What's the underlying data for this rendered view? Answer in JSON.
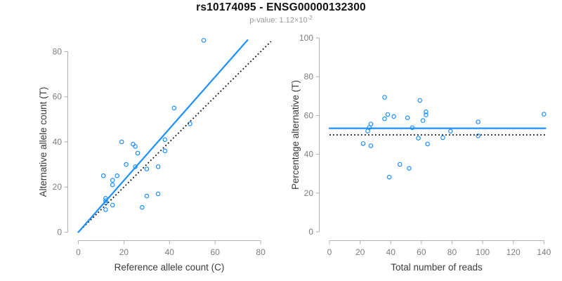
{
  "header": {
    "title": "rs10174095 - ENSG00000132300",
    "subtitle_prefix": "p-value: 1.12×10",
    "subtitle_exponent": "-2"
  },
  "colors": {
    "point_blue": "#1e90ff",
    "line_blue": "#1e90ff",
    "dotted_black": "#111111",
    "axis_gray": "#b0b0b0",
    "tick_label_gray": "#7d7d7d",
    "axis_title_gray": "#3b3b3b",
    "title_black": "#111111",
    "subtitle_gray": "#9b9b9b"
  },
  "chart_data": {
    "title": "rs10174095 - ENSG00000132300",
    "subtitle": "p-value: 1.12×10^-2",
    "panels": [
      {
        "name": "allele-counts-panel",
        "type": "scatter",
        "xlabel": "Reference allele count (C)",
        "ylabel": "Alternative allele count (T)",
        "xlim": [
          0,
          80
        ],
        "ylim": [
          0,
          80
        ],
        "xticks": [
          0,
          20,
          40,
          60,
          80
        ],
        "yticks": [
          0,
          20,
          40,
          60,
          80
        ],
        "grid": false,
        "legend": "none",
        "points": [
          [
            11,
            25
          ],
          [
            19,
            40
          ],
          [
            15,
            23
          ],
          [
            17,
            25
          ],
          [
            15,
            21
          ],
          [
            24,
            39
          ],
          [
            25,
            38
          ],
          [
            21,
            30
          ],
          [
            26,
            35
          ],
          [
            42,
            55
          ],
          [
            55,
            85
          ],
          [
            12,
            15
          ],
          [
            25,
            29
          ],
          [
            12,
            14
          ],
          [
            12,
            13
          ],
          [
            38,
            41
          ],
          [
            30,
            28
          ],
          [
            38,
            36
          ],
          [
            49,
            48
          ],
          [
            12,
            10
          ],
          [
            15,
            12
          ],
          [
            35,
            29
          ],
          [
            30,
            16
          ],
          [
            35,
            17
          ],
          [
            28,
            11
          ]
        ],
        "lines": [
          {
            "name": "identity-line",
            "style": "dotted",
            "from": [
              1,
              1
            ],
            "to": [
              84.5,
              84.5
            ]
          },
          {
            "name": "fitted-line",
            "style": "solid",
            "from": [
              0,
              0
            ],
            "to": [
              74.2,
              85.1
            ]
          }
        ]
      },
      {
        "name": "percentage-panel",
        "type": "scatter",
        "xlabel": "Total number of reads",
        "ylabel": "Percentage alternative (T)",
        "xlim": [
          0,
          140
        ],
        "ylim": [
          0,
          100
        ],
        "xticks": [
          0,
          20,
          40,
          60,
          80,
          100,
          120,
          140
        ],
        "yticks": [
          0,
          20,
          40,
          60,
          80,
          100
        ],
        "grid": false,
        "legend": "none",
        "points": [
          [
            36,
            69.4
          ],
          [
            59,
            67.8
          ],
          [
            38,
            60.5
          ],
          [
            42,
            59.5
          ],
          [
            36,
            58.3
          ],
          [
            63,
            61.9
          ],
          [
            63,
            60.3
          ],
          [
            51,
            58.8
          ],
          [
            61,
            57.4
          ],
          [
            97,
            56.7
          ],
          [
            140,
            60.7
          ],
          [
            27,
            55.6
          ],
          [
            54,
            53.7
          ],
          [
            26,
            53.8
          ],
          [
            25,
            52
          ],
          [
            79,
            51.9
          ],
          [
            58,
            48.3
          ],
          [
            74,
            48.6
          ],
          [
            97,
            49.5
          ],
          [
            22,
            45.5
          ],
          [
            27,
            44.4
          ],
          [
            64,
            45.3
          ],
          [
            46,
            34.8
          ],
          [
            52,
            32.7
          ],
          [
            39,
            28.2
          ]
        ],
        "lines": [
          {
            "name": "expected-line",
            "style": "dotted",
            "from": [
              0,
              50
            ],
            "to": [
              141,
              50
            ]
          },
          {
            "name": "mean-line",
            "style": "solid",
            "from": [
              0,
              53.4
            ],
            "to": [
              141,
              53.4
            ]
          }
        ]
      }
    ]
  }
}
